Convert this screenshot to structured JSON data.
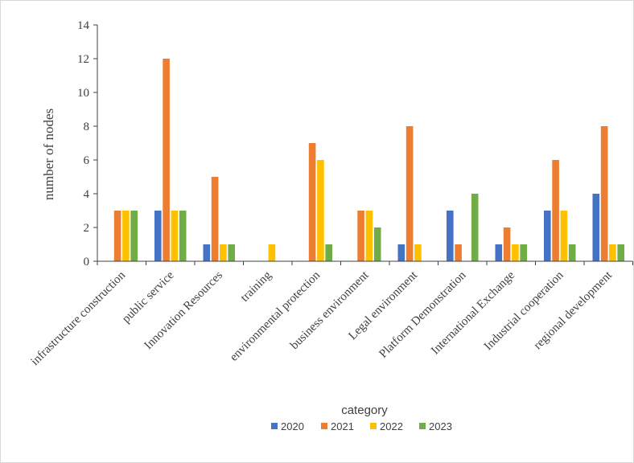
{
  "chart_data": {
    "type": "bar",
    "xlabel": "category",
    "ylabel": "number of nodes",
    "ylim": [
      0,
      14
    ],
    "yticks": [
      0,
      2,
      4,
      6,
      8,
      10,
      12,
      14
    ],
    "grid": false,
    "legend_position": "bottom",
    "categories": [
      "infrastructure construction",
      "public service",
      "Innovation Resources",
      "training",
      "environmental  protection",
      "business environment",
      "Legal environment",
      "Platform Demonstration",
      "International  Exchange",
      "Industrial cooperation",
      "regional development"
    ],
    "series": [
      {
        "name": "2020",
        "color": "#4472C4",
        "values": [
          0,
          3,
          1,
          0,
          0,
          0,
          1,
          3,
          1,
          3,
          4
        ]
      },
      {
        "name": "2021",
        "color": "#ED7D31",
        "values": [
          3,
          12,
          5,
          0,
          7,
          3,
          8,
          1,
          2,
          6,
          8
        ]
      },
      {
        "name": "2022",
        "color": "#FFC000",
        "values": [
          3,
          3,
          1,
          1,
          6,
          3,
          1,
          0,
          1,
          3,
          1
        ]
      },
      {
        "name": "2023",
        "color": "#70AD47",
        "values": [
          3,
          3,
          1,
          0,
          1,
          2,
          0,
          4,
          1,
          1,
          1
        ]
      }
    ]
  }
}
